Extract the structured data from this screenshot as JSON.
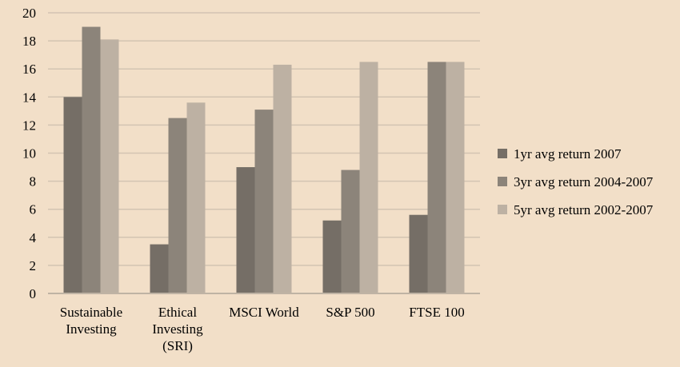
{
  "chart_data": {
    "type": "bar",
    "categories": [
      [
        "Sustainable",
        "Investing"
      ],
      [
        "Ethical",
        "Investing",
        "(SRI)"
      ],
      [
        "MSCI World"
      ],
      [
        "S&P 500"
      ],
      [
        "FTSE 100"
      ]
    ],
    "series": [
      {
        "name": "1yr avg return 2007",
        "color": "#756e66",
        "values": [
          14,
          3.5,
          9,
          5.2,
          5.6
        ]
      },
      {
        "name": "3yr avg return 2004-2007",
        "color": "#8c847a",
        "values": [
          19,
          12.5,
          13.1,
          8.8,
          16.5
        ]
      },
      {
        "name": "5yr avg return 2002-2007",
        "color": "#bdb1a3",
        "values": [
          18.1,
          13.6,
          16.3,
          16.5,
          16.5
        ]
      }
    ],
    "ylim": [
      0,
      20
    ],
    "yticks": [
      0,
      2,
      4,
      6,
      8,
      10,
      12,
      14,
      16,
      18,
      20
    ],
    "grid": true,
    "legend_position": "right",
    "title": "",
    "xlabel": "",
    "ylabel": ""
  }
}
